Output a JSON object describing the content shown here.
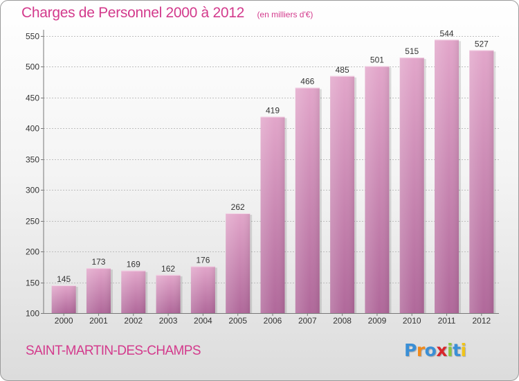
{
  "chart_data": {
    "type": "bar",
    "title": "Charges de Personnel 2000 à 2012",
    "subtitle": "(en milliers d'€)",
    "categories": [
      "2000",
      "2001",
      "2002",
      "2003",
      "2004",
      "2005",
      "2006",
      "2007",
      "2008",
      "2009",
      "2010",
      "2011",
      "2012"
    ],
    "values": [
      145,
      173,
      169,
      162,
      176,
      262,
      419,
      466,
      485,
      501,
      515,
      544,
      527
    ],
    "ylim": [
      100,
      550
    ],
    "yticks": [
      100,
      150,
      200,
      250,
      300,
      350,
      400,
      450,
      500,
      550
    ],
    "grid": true,
    "bar_color": "#c47aa8"
  },
  "footer": {
    "place": "SAINT-MARTIN-DES-CHAMPS",
    "brand": "Proxiti",
    "brand_colors": [
      "#3a8fd6",
      "#f08a1c",
      "#3a8fd6",
      "#d8262b",
      "#8cc63f",
      "#3a8fd6",
      "#f0c419"
    ]
  },
  "colors": {
    "accent": "#d33a8c",
    "grid": "#bdbdbd"
  }
}
